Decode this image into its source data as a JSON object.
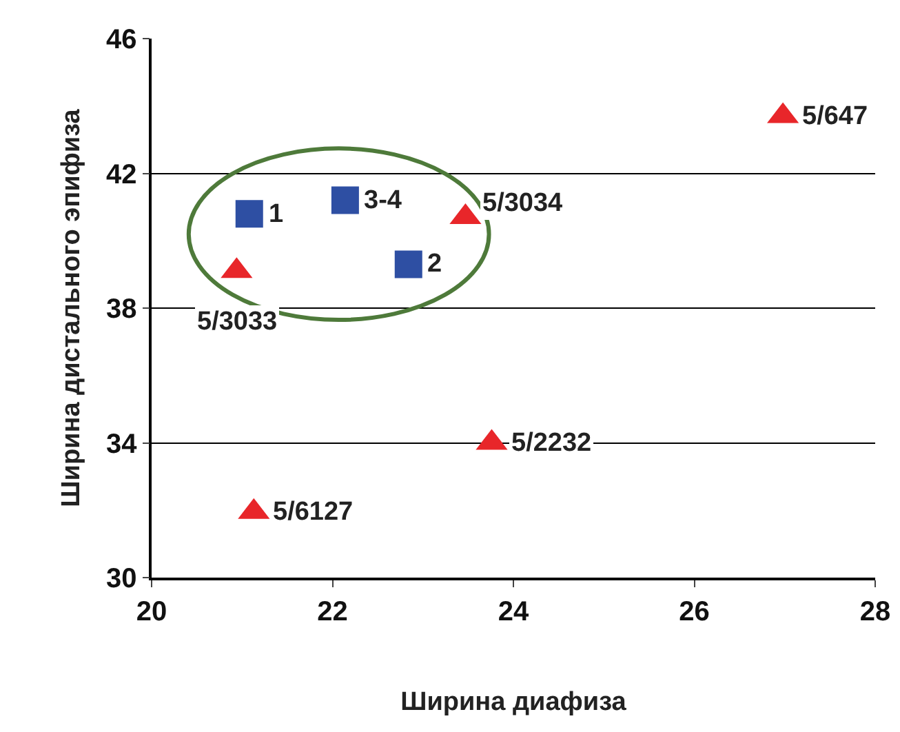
{
  "chart_data": {
    "type": "scatter",
    "xlabel": "Ширина диафиза",
    "ylabel": "Ширина дистального эпифиза",
    "xlim": [
      20,
      28
    ],
    "xticks": [
      20,
      22,
      24,
      26,
      28
    ],
    "ylim": [
      30,
      46
    ],
    "yticks": [
      30,
      34,
      38,
      42,
      46
    ],
    "grid": "y",
    "series": [
      {
        "color": "#2e4fa3",
        "marker": "square",
        "x": [
          21.08,
          22.14,
          22.84
        ],
        "values": [
          40.8,
          41.2,
          39.3
        ]
      },
      {
        "color": "#e8262a",
        "marker": "triangle",
        "x": [
          20.94,
          23.47,
          26.98,
          23.76,
          21.13
        ],
        "values": [
          39.1,
          40.7,
          43.7,
          34.0,
          31.95
        ]
      }
    ],
    "annotations": [
      {
        "text": "1",
        "x": 21.08,
        "y": 40.8
      },
      {
        "text": "3-4",
        "x": 22.14,
        "y": 41.2
      },
      {
        "text": "2",
        "x": 22.84,
        "y": 39.3
      },
      {
        "text": "5/3033",
        "x": 20.94,
        "y": 39.1
      },
      {
        "text": "5/3034",
        "x": 23.47,
        "y": 40.7
      },
      {
        "text": "5/647",
        "x": 26.98,
        "y": 43.7
      },
      {
        "text": "5/2232",
        "x": 23.76,
        "y": 34.0
      },
      {
        "text": "5/6127",
        "x": 21.13,
        "y": 31.95
      }
    ]
  }
}
